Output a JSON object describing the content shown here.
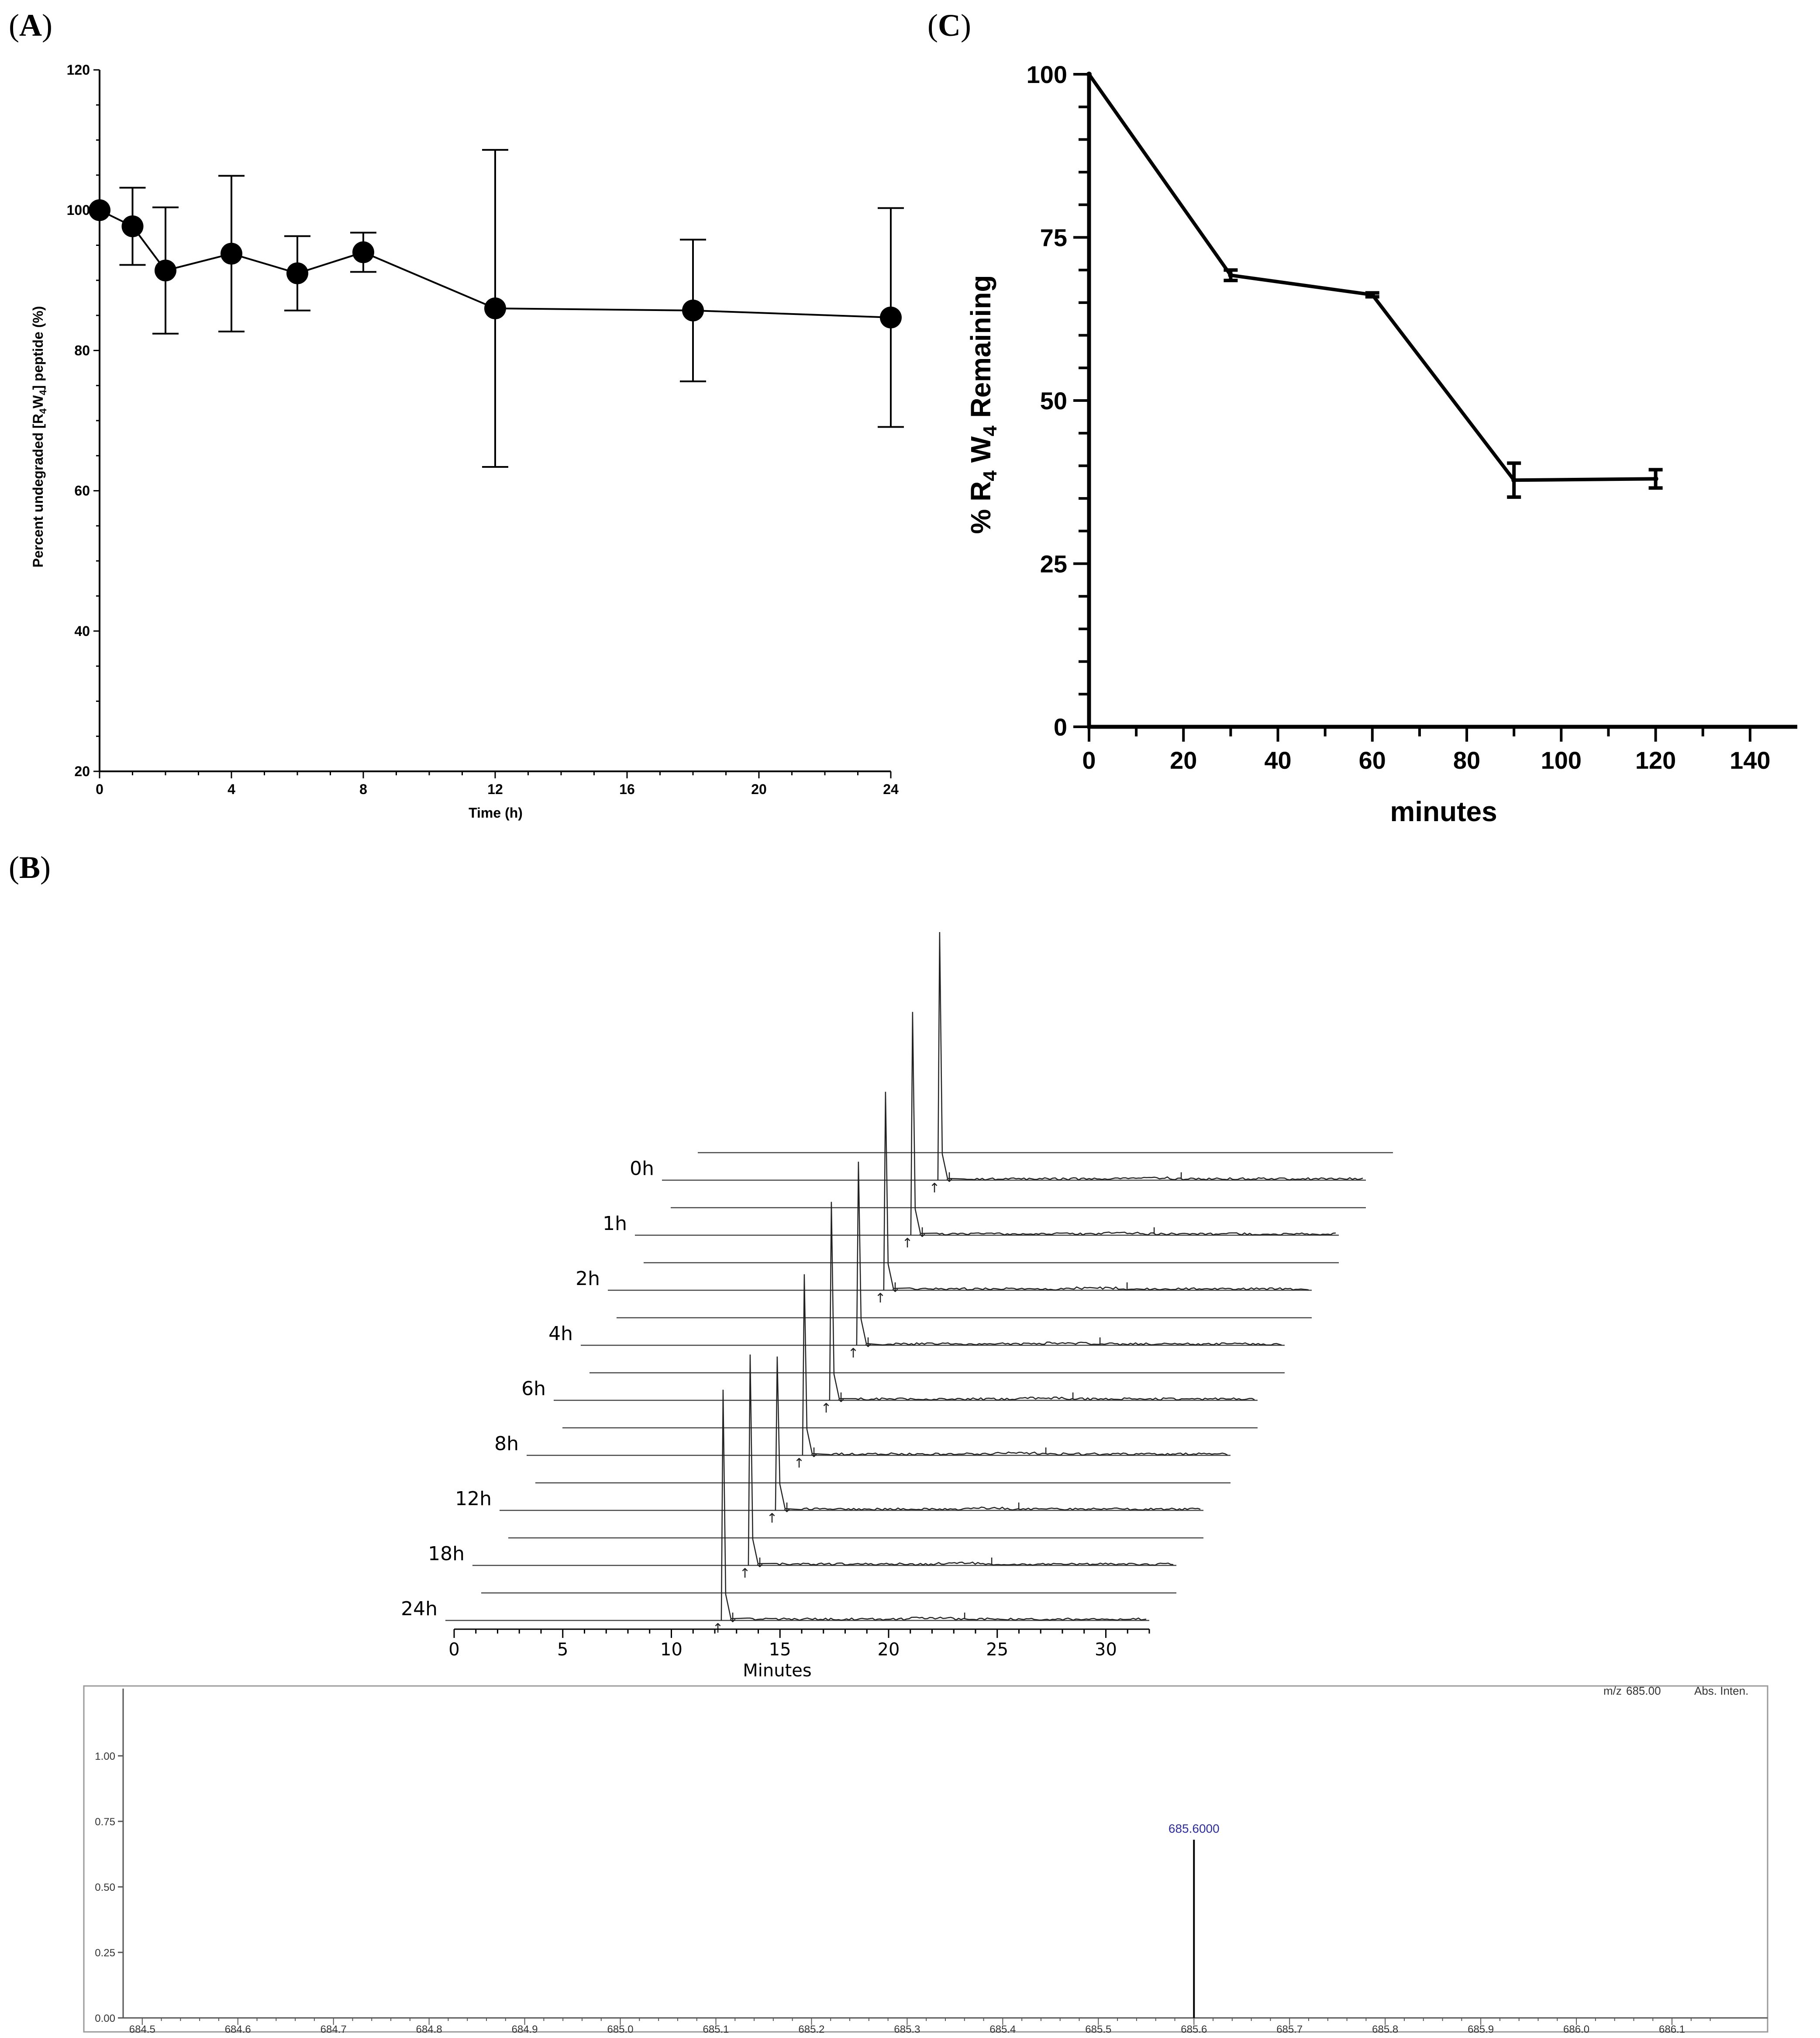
{
  "panels": {
    "a_label": "A",
    "b_label": "B",
    "c_label": "C"
  },
  "chart_data": [
    {
      "id": "A",
      "type": "line",
      "title": "",
      "xlabel": "Time (h)",
      "ylabel": "Percent undegraded [R4W4] peptide (%)",
      "ylabel_parts": {
        "pre": "Percent undegraded [R",
        "sub1": "4",
        "mid": "W",
        "sub2": "4",
        "post": "] peptide (%)"
      },
      "xlim": [
        0,
        24
      ],
      "ylim": [
        20,
        120
      ],
      "xticks": [
        0,
        4,
        8,
        12,
        16,
        20,
        24
      ],
      "yticks": [
        20,
        40,
        60,
        80,
        100,
        120
      ],
      "x": [
        0,
        1,
        2,
        4,
        6,
        8,
        12,
        18,
        24
      ],
      "values": [
        100,
        97.7,
        91.4,
        93.8,
        91.0,
        94.0,
        86.0,
        85.7,
        84.7
      ],
      "errors": [
        0,
        5.5,
        9.0,
        11.1,
        5.3,
        2.8,
        22.6,
        10.1,
        15.6
      ]
    },
    {
      "id": "C",
      "type": "line",
      "title": "",
      "xlabel": "minutes",
      "ylabel": "% R4W4 Remaining",
      "ylabel_parts": {
        "pre": "% R",
        "sub1": "4",
        "mid": " W",
        "sub2": "4",
        "post": " Remaining"
      },
      "xlim": [
        0,
        150
      ],
      "ylim": [
        0,
        100
      ],
      "xticks": [
        0,
        20,
        40,
        60,
        80,
        100,
        120,
        140
      ],
      "yticks": [
        0,
        25,
        50,
        75,
        100
      ],
      "x": [
        0,
        30,
        60,
        90,
        120
      ],
      "values": [
        100,
        69.2,
        66.2,
        37.8,
        38.0
      ],
      "errors": [
        0,
        0.8,
        0.3,
        2.6,
        1.4
      ]
    },
    {
      "id": "B",
      "type": "line",
      "title": "",
      "xlabel": "Minutes",
      "ylabel": "",
      "xlim": [
        0,
        32
      ],
      "xticks": [
        0,
        5,
        10,
        15,
        20,
        25,
        30
      ],
      "series_labels": [
        "0h",
        "1h",
        "2h",
        "4h",
        "6h",
        "8h",
        "12h",
        "18h",
        "24h"
      ],
      "peak_time": 12.3,
      "relative_peak_heights": [
        1.0,
        0.9,
        0.8,
        0.74,
        0.8,
        0.73,
        0.62,
        0.85,
        0.93
      ]
    },
    {
      "id": "MS",
      "type": "bar",
      "title": "",
      "header_mz": "m/z",
      "header_value": "685.00",
      "header_int": "Abs. Inten.",
      "xlim": [
        684.48,
        686.2
      ],
      "ylim": [
        0,
        1.2
      ],
      "xticks": [
        "684.5",
        "684.6",
        "684.7",
        "684.8",
        "684.9",
        "685.0",
        "685.1",
        "685.2",
        "685.3",
        "685.4",
        "685.5",
        "685.6",
        "685.7",
        "685.8",
        "685.9",
        "686.0",
        "686.1"
      ],
      "yticks": [
        "0.00",
        "0.25",
        "0.50",
        "0.75",
        "1.00"
      ],
      "peaks": [
        {
          "x": 685.6,
          "y": 0.68,
          "label": "685.6000"
        }
      ]
    }
  ]
}
